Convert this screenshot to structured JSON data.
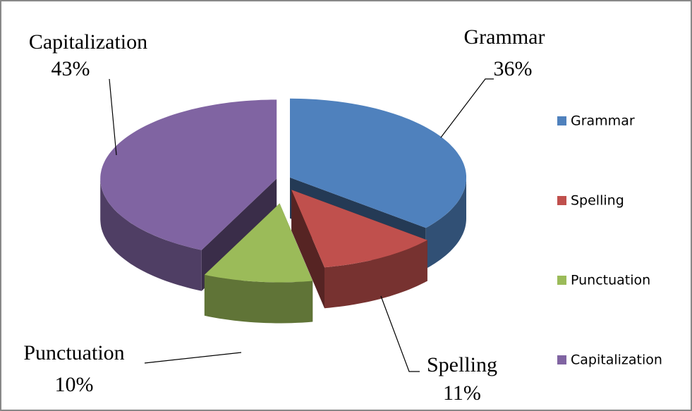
{
  "chart_data": {
    "type": "pie",
    "categories": [
      "Grammar",
      "Spelling",
      "Punctuation",
      "Capitalization"
    ],
    "values": [
      36,
      11,
      10,
      43
    ],
    "value_labels": [
      "36%",
      "11%",
      "10%",
      "43%"
    ],
    "colors": [
      "#4f81bd",
      "#c0504d",
      "#9bbb59",
      "#8064a2"
    ],
    "legend": "right"
  }
}
